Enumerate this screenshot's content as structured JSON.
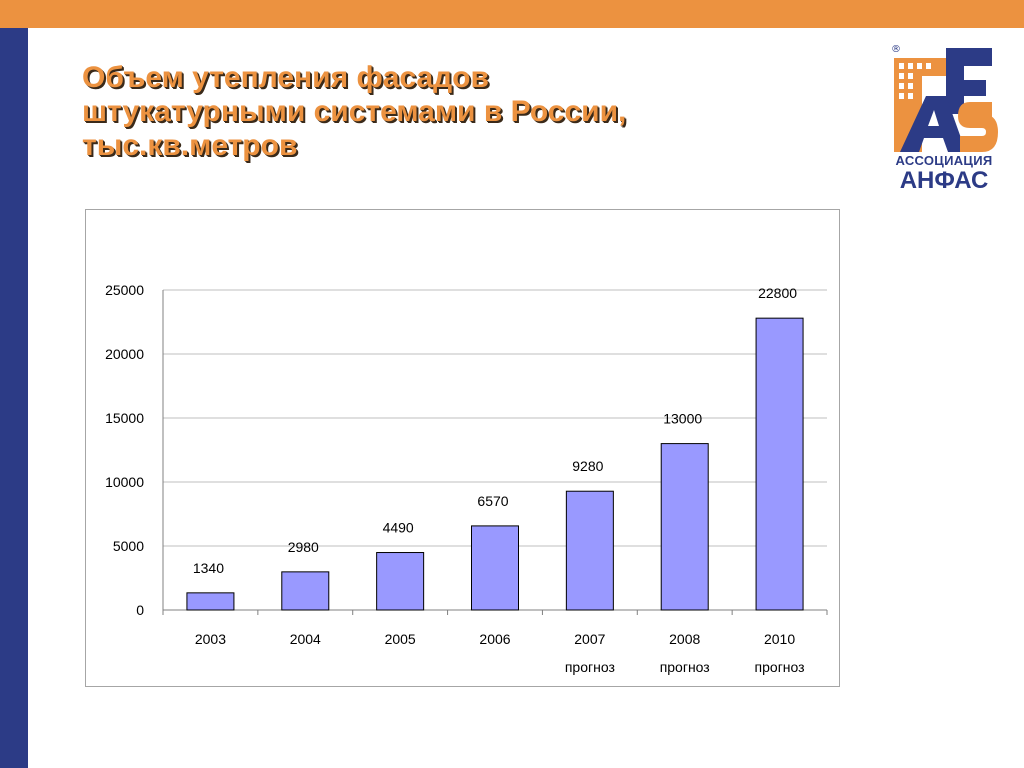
{
  "slide": {
    "title_lines": [
      "Объем утепления фасадов",
      "штукатурными системами в России,",
      "тыс.кв.метров"
    ],
    "colors": {
      "accent_orange": "#ec9240",
      "accent_blue": "#2c3b86",
      "bar_fill": "#9999ff"
    }
  },
  "logo": {
    "registered_mark": "®",
    "line1": "АССОЦИАЦИЯ",
    "line2": "АНФАС"
  },
  "chart_data": {
    "type": "bar",
    "categories": [
      "2003",
      "2004",
      "2005",
      "2006",
      "2007",
      "2008",
      "2010"
    ],
    "category_notes": [
      "",
      "",
      "",
      "",
      "прогноз",
      "прогноз",
      "прогноз"
    ],
    "values": [
      1340,
      2980,
      4490,
      6570,
      9280,
      13000,
      22800
    ],
    "data_labels": [
      "1340",
      "2980",
      "4490",
      "6570",
      "9280",
      "13000",
      "22800"
    ],
    "title": "",
    "xlabel": "",
    "ylabel": "",
    "ylim": [
      0,
      25000
    ],
    "yticks": [
      0,
      5000,
      10000,
      15000,
      20000,
      25000
    ],
    "grid": true,
    "legend": "none"
  }
}
